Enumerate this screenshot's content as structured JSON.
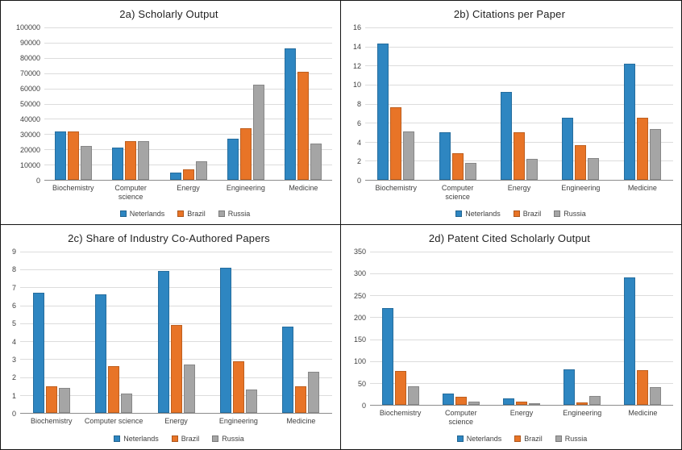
{
  "series_colors": [
    "#2E86C1",
    "#E87427",
    "#A5A5A5"
  ],
  "axis_style": {
    "tick_color": "#3F3F3F",
    "grid_color": "#DCDCDC"
  },
  "chart_data": [
    {
      "id": "2a",
      "type": "bar",
      "title": "2a) Scholarly Output",
      "categories": [
        "Biochemistry",
        "Computer science",
        "Energy",
        "Engineering",
        "Medicine"
      ],
      "series": [
        {
          "name": "Neterlands",
          "values": [
            31500,
            21000,
            5000,
            27000,
            86000
          ]
        },
        {
          "name": "Brazil",
          "values": [
            31500,
            25500,
            7000,
            34000,
            71000
          ]
        },
        {
          "name": "Russia",
          "values": [
            22000,
            25500,
            12000,
            62500,
            24000
          ]
        }
      ],
      "ylim": [
        0,
        100000
      ],
      "ytick_step": 10000,
      "grid": true,
      "legend_position": "bottom",
      "xlabel_wrap": true
    },
    {
      "id": "2b",
      "type": "bar",
      "title": "2b) Citations per Paper",
      "categories": [
        "Biochemistry",
        "Computer science",
        "Energy",
        "Engineering",
        "Medicine"
      ],
      "series": [
        {
          "name": "Neterlands",
          "values": [
            14.3,
            5.0,
            9.2,
            6.5,
            12.2
          ]
        },
        {
          "name": "Brazil",
          "values": [
            7.6,
            2.8,
            5.0,
            3.6,
            6.5
          ]
        },
        {
          "name": "Russia",
          "values": [
            5.1,
            1.8,
            2.2,
            2.3,
            5.3
          ]
        }
      ],
      "ylim": [
        0,
        16
      ],
      "ytick_step": 2,
      "grid": true,
      "legend_position": "bottom",
      "xlabel_wrap": true
    },
    {
      "id": "2c",
      "type": "bar",
      "title": "2c) Share of Industry Co-Authored Papers",
      "categories": [
        "Biochemistry",
        "Computer science",
        "Energy",
        "Engineering",
        "Medicine"
      ],
      "series": [
        {
          "name": "Neterlands",
          "values": [
            6.7,
            6.6,
            7.9,
            8.1,
            4.8
          ]
        },
        {
          "name": "Brazil",
          "values": [
            1.5,
            2.6,
            4.9,
            2.9,
            1.5
          ]
        },
        {
          "name": "Russia",
          "values": [
            1.4,
            1.1,
            2.7,
            1.3,
            2.3
          ]
        }
      ],
      "ylim": [
        0,
        9
      ],
      "ytick_step": 1,
      "grid": true,
      "legend_position": "bottom",
      "xlabel_wrap": false
    },
    {
      "id": "2d",
      "type": "bar",
      "title": "2d) Patent Cited Scholarly Output",
      "categories": [
        "Biochemistry",
        "Computer science",
        "Energy",
        "Engineering",
        "Medicine"
      ],
      "series": [
        {
          "name": "Neterlands",
          "values": [
            222,
            25,
            15,
            82,
            292
          ]
        },
        {
          "name": "Brazil",
          "values": [
            78,
            18,
            7,
            5,
            80
          ]
        },
        {
          "name": "Russia",
          "values": [
            42,
            8,
            3,
            20,
            40
          ]
        }
      ],
      "ylim": [
        0,
        350
      ],
      "ytick_step": 50,
      "grid": true,
      "legend_position": "bottom",
      "xlabel_wrap": true
    }
  ]
}
